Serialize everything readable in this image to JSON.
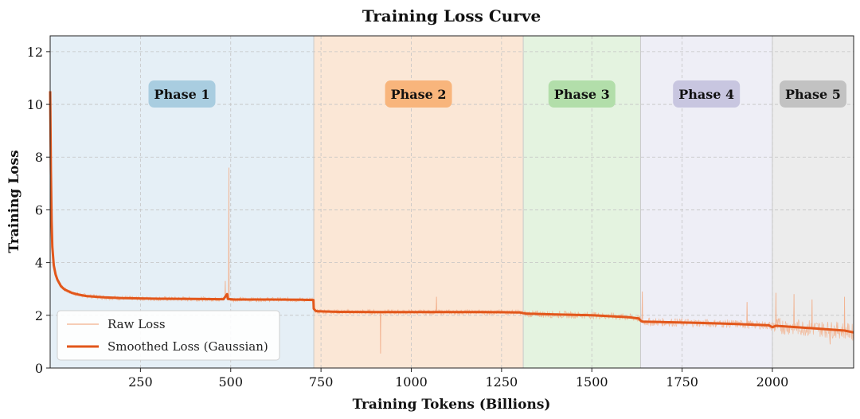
{
  "chart_data": {
    "type": "line",
    "title": "Training Loss Curve",
    "xlabel": "Training Tokens (Billions)",
    "ylabel": "Training Loss",
    "xlim": [
      0,
      2225
    ],
    "ylim": [
      0,
      12.6
    ],
    "xticks": [
      250,
      500,
      750,
      1000,
      1250,
      1500,
      1750,
      2000
    ],
    "yticks": [
      0,
      2,
      4,
      6,
      8,
      10,
      12
    ],
    "grid": true,
    "legend_position": "lower-left",
    "phases": [
      {
        "label": "Phase 1",
        "start": 0,
        "end": 730,
        "bg": "#e5eff6",
        "badge": "#a9cde0"
      },
      {
        "label": "Phase 2",
        "start": 730,
        "end": 1310,
        "bg": "#fbe7d6",
        "badge": "#f8b57c"
      },
      {
        "label": "Phase 3",
        "start": 1310,
        "end": 1635,
        "bg": "#e4f3e0",
        "badge": "#b2deaa"
      },
      {
        "label": "Phase 4",
        "start": 1635,
        "end": 2000,
        "bg": "#eeeef6",
        "badge": "#c8c6e0"
      },
      {
        "label": "Phase 5",
        "start": 2000,
        "end": 2225,
        "bg": "#ececec",
        "badge": "#c2c2c2"
      }
    ],
    "series": [
      {
        "name": "Raw Loss",
        "style": "thin",
        "color": "#f2b08c",
        "spikes": [
          {
            "x": 495,
            "y": 7.6
          },
          {
            "x": 485,
            "y": 3.3
          },
          {
            "x": 915,
            "y": 0.55
          },
          {
            "x": 1070,
            "y": 2.7
          },
          {
            "x": 1640,
            "y": 2.9
          },
          {
            "x": 1930,
            "y": 2.5
          },
          {
            "x": 2010,
            "y": 2.85
          },
          {
            "x": 2060,
            "y": 2.8
          },
          {
            "x": 2110,
            "y": 2.6
          },
          {
            "x": 2160,
            "y": 0.9
          },
          {
            "x": 2200,
            "y": 2.7
          }
        ]
      },
      {
        "name": "Smoothed Loss (Gaussian)",
        "style": "thick",
        "color": "#e2571b",
        "x": [
          0,
          2,
          4,
          6,
          10,
          15,
          20,
          30,
          40,
          60,
          80,
          100,
          150,
          200,
          300,
          400,
          480,
          490,
          492,
          500,
          510,
          600,
          700,
          729,
          730,
          735,
          740,
          800,
          900,
          1000,
          1100,
          1200,
          1300,
          1310,
          1320,
          1400,
          1500,
          1600,
          1630,
          1635,
          1640,
          1700,
          1800,
          1900,
          1990,
          2000,
          2010,
          2100,
          2200,
          2225
        ],
        "y": [
          10.5,
          7.5,
          5.6,
          4.6,
          3.9,
          3.55,
          3.35,
          3.1,
          2.98,
          2.85,
          2.78,
          2.73,
          2.68,
          2.65,
          2.63,
          2.62,
          2.61,
          2.8,
          2.62,
          2.61,
          2.6,
          2.6,
          2.59,
          2.58,
          2.25,
          2.17,
          2.15,
          2.13,
          2.12,
          2.12,
          2.12,
          2.12,
          2.11,
          2.08,
          2.06,
          2.03,
          2.0,
          1.93,
          1.88,
          1.8,
          1.76,
          1.74,
          1.71,
          1.67,
          1.62,
          1.55,
          1.6,
          1.52,
          1.42,
          1.35
        ]
      }
    ]
  }
}
